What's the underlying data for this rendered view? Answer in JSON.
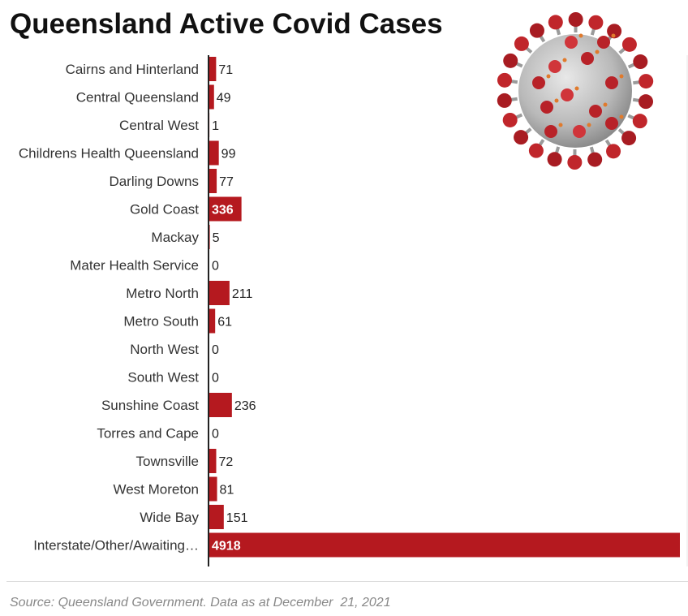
{
  "title": "Queensland Active Covid Cases",
  "source": "Source: Queensland Government. Data as at December  21, 2021",
  "colors": {
    "bar": "#b5191f",
    "axis": "#222222"
  },
  "image_icon": "coronavirus-illustration",
  "chart_data": {
    "type": "bar",
    "orientation": "horizontal",
    "title": "Queensland Active Covid Cases",
    "xlabel": "",
    "ylabel": "",
    "grid": false,
    "xlim": [
      0,
      4918
    ],
    "categories": [
      "Cairns and Hinterland",
      "Central Queensland",
      "Central West",
      "Childrens Health Queensland",
      "Darling Downs",
      "Gold Coast",
      "Mackay",
      "Mater Health Service",
      "Metro North",
      "Metro South",
      "North West",
      "South West",
      "Sunshine Coast",
      "Torres and Cape",
      "Townsville",
      "West Moreton",
      "Wide Bay",
      "Interstate/Other/Awaiting…"
    ],
    "values": [
      71,
      49,
      1,
      99,
      77,
      336,
      5,
      0,
      211,
      61,
      0,
      0,
      236,
      0,
      72,
      81,
      151,
      4918
    ]
  }
}
